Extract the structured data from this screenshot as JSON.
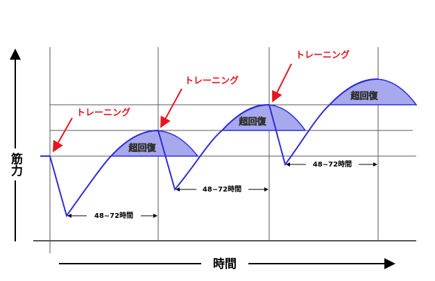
{
  "axes": {
    "y_label": "筋力",
    "x_label": "時間"
  },
  "cycles": [
    {
      "training": "トレーニング",
      "recovery": "超回復",
      "interval": "48~72時間"
    },
    {
      "training": "トレーニング",
      "recovery": "超回復",
      "interval": "48~72時間"
    },
    {
      "training": "トレーニング",
      "recovery": "超回復",
      "interval": "48~72時間"
    }
  ]
}
